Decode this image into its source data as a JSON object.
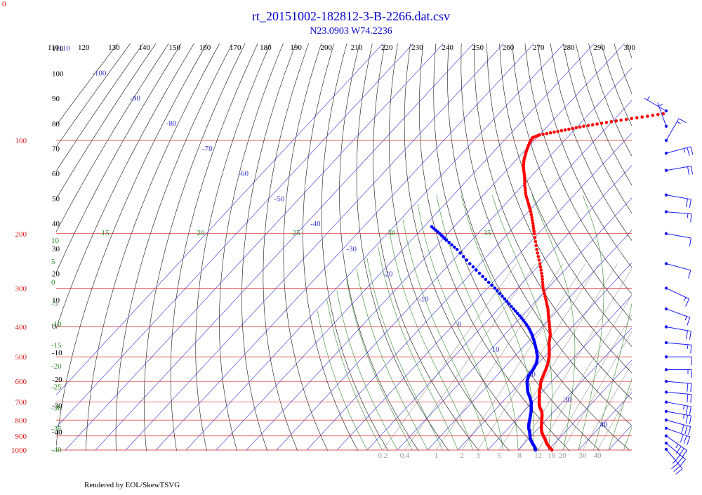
{
  "header": {
    "title": "rt_20151002-182812-3-B-2266.dat.csv",
    "subtitle": "N23.0903 W74.2236",
    "corner_label": "0"
  },
  "footer": {
    "credit": "Rendered by EOL/SkewTSVG"
  },
  "colors": {
    "isobar": "#d62020",
    "isotherm": "#3333cc",
    "dry_adiabat": "#111111",
    "moist_adiabat": "#2e8b2e",
    "mixing_ratio": "#999999",
    "temperature": "#ff0000",
    "dewpoint": "#0000ff",
    "wind_barb": "#1a1aff",
    "title": "#0000cc"
  },
  "chart_data": {
    "type": "scatter",
    "chart_kind": "skew-t log-p",
    "pressure_axis": {
      "scale": "log",
      "range": [
        1000,
        100
      ],
      "ticks": [
        100,
        200,
        300,
        400,
        500,
        600,
        700,
        800,
        900,
        1000
      ]
    },
    "top_scale_labels": [
      "110",
      "120",
      "130",
      "140",
      "150",
      "160",
      "170",
      "180",
      "190",
      "200",
      "210",
      "220",
      "230",
      "240",
      "250",
      "260",
      "270",
      "280",
      "290",
      "300"
    ],
    "isotherm_labels": [
      "-110",
      "-100",
      "-90",
      "-80",
      "-70",
      "-60",
      "-50",
      "-40",
      "-30",
      "-20",
      "-10",
      "0",
      "10",
      "20",
      "30",
      "40"
    ],
    "left_black_labels": [
      "110",
      "100",
      "90",
      "80",
      "70",
      "60",
      "50",
      "40",
      "30",
      "20",
      "10",
      "0",
      "-10",
      "-20",
      "-30",
      "-40"
    ],
    "left_green_labels": [
      "10",
      "5",
      "0",
      "-5",
      "-10",
      "-15",
      "-20",
      "-25",
      "-30",
      "-35",
      "-40"
    ],
    "moist_adiabat_labels": [
      "15",
      "20",
      "25",
      "30",
      "35"
    ],
    "mixing_ratio_labels": [
      "0.2",
      "0.4",
      "1",
      "2",
      "3",
      "5",
      "8",
      "12",
      "16",
      "20",
      "30",
      "40"
    ],
    "series": [
      {
        "role": "temperature",
        "points": [
          {
            "p": 1000,
            "t": 21.2
          },
          {
            "p": 975,
            "t": 19.2
          },
          {
            "p": 950,
            "t": 17.3
          },
          {
            "p": 925,
            "t": 15.8
          },
          {
            "p": 900,
            "t": 14.0
          },
          {
            "p": 875,
            "t": 12.3
          },
          {
            "p": 850,
            "t": 11.0
          },
          {
            "p": 825,
            "t": 9.8
          },
          {
            "p": 800,
            "t": 8.6
          },
          {
            "p": 775,
            "t": 7.4
          },
          {
            "p": 750,
            "t": 5.9
          },
          {
            "p": 725,
            "t": 3.8
          },
          {
            "p": 700,
            "t": 2.2
          },
          {
            "p": 675,
            "t": 0.8
          },
          {
            "p": 650,
            "t": -0.8
          },
          {
            "p": 625,
            "t": -2.1
          },
          {
            "p": 600,
            "t": -3.6
          },
          {
            "p": 575,
            "t": -4.6
          },
          {
            "p": 550,
            "t": -5.6
          },
          {
            "p": 525,
            "t": -6.8
          },
          {
            "p": 500,
            "t": -8.4
          },
          {
            "p": 475,
            "t": -10.5
          },
          {
            "p": 450,
            "t": -12.8
          },
          {
            "p": 425,
            "t": -14.8
          },
          {
            "p": 400,
            "t": -17.5
          },
          {
            "p": 375,
            "t": -20.5
          },
          {
            "p": 350,
            "t": -23.6
          },
          {
            "p": 325,
            "t": -27.4
          },
          {
            "p": 300,
            "t": -31.6
          },
          {
            "p": 275,
            "t": -35.5
          },
          {
            "p": 250,
            "t": -40.2
          },
          {
            "p": 225,
            "t": -45.6
          },
          {
            "p": 200,
            "t": -51.3
          },
          {
            "p": 185,
            "t": -55.0
          },
          {
            "p": 170,
            "t": -59.2
          },
          {
            "p": 160,
            "t": -62.5
          },
          {
            "p": 150,
            "t": -66.0
          },
          {
            "p": 140,
            "t": -69.2
          },
          {
            "p": 130,
            "t": -72.4
          },
          {
            "p": 122,
            "t": -75.4
          },
          {
            "p": 115,
            "t": -77.6
          },
          {
            "p": 108,
            "t": -79.4
          },
          {
            "p": 102,
            "t": -80.8
          },
          {
            "p": 98,
            "t": -81.4
          },
          {
            "p": 96,
            "t": -80.0
          },
          {
            "p": 94,
            "t": -76.0
          },
          {
            "p": 92,
            "t": -72.0
          },
          {
            "p": 90,
            "t": -68.0
          },
          {
            "p": 88,
            "t": -63.0
          },
          {
            "p": 86,
            "t": -57.5
          },
          {
            "p": 84,
            "t": -51.5
          },
          {
            "p": 82,
            "t": -45.5
          }
        ]
      },
      {
        "role": "dewpoint",
        "points": [
          {
            "p": 1000,
            "td": 15.8
          },
          {
            "p": 975,
            "td": 14.4
          },
          {
            "p": 950,
            "td": 12.6
          },
          {
            "p": 925,
            "td": 10.9
          },
          {
            "p": 900,
            "td": 9.6
          },
          {
            "p": 875,
            "td": 8.3
          },
          {
            "p": 850,
            "td": 6.8
          },
          {
            "p": 825,
            "td": 5.6
          },
          {
            "p": 800,
            "td": 4.6
          },
          {
            "p": 775,
            "td": 3.5
          },
          {
            "p": 750,
            "td": 2.4
          },
          {
            "p": 725,
            "td": 1.0
          },
          {
            "p": 700,
            "td": -0.4
          },
          {
            "p": 675,
            "td": -2.4
          },
          {
            "p": 650,
            "td": -4.6
          },
          {
            "p": 625,
            "td": -6.4
          },
          {
            "p": 600,
            "td": -8.2
          },
          {
            "p": 575,
            "td": -9.4
          },
          {
            "p": 550,
            "td": -9.8
          },
          {
            "p": 525,
            "td": -10.6
          },
          {
            "p": 500,
            "td": -12.3
          },
          {
            "p": 475,
            "td": -14.8
          },
          {
            "p": 450,
            "td": -17.6
          },
          {
            "p": 425,
            "td": -20.8
          },
          {
            "p": 400,
            "td": -24.6
          },
          {
            "p": 375,
            "td": -29.4
          },
          {
            "p": 350,
            "td": -35.0
          },
          {
            "p": 325,
            "td": -41.0
          },
          {
            "p": 300,
            "td": -47.6
          },
          {
            "p": 275,
            "td": -55.2
          },
          {
            "p": 250,
            "td": -63.4
          },
          {
            "p": 225,
            "td": -72.0
          },
          {
            "p": 210,
            "td": -78.4
          },
          {
            "p": 200,
            "td": -82.6
          },
          {
            "p": 190,
            "td": -87.4
          }
        ]
      }
    ],
    "wind_barbs": [
      {
        "p": 1000,
        "dir": 140,
        "speed": 35
      },
      {
        "p": 950,
        "dir": 130,
        "speed": 30
      },
      {
        "p": 900,
        "dir": 125,
        "speed": 35
      },
      {
        "p": 850,
        "dir": 110,
        "speed": 30
      },
      {
        "p": 800,
        "dir": 105,
        "speed": 30
      },
      {
        "p": 750,
        "dir": 100,
        "speed": 25
      },
      {
        "p": 700,
        "dir": 100,
        "speed": 25
      },
      {
        "p": 650,
        "dir": 95,
        "speed": 20
      },
      {
        "p": 600,
        "dir": 95,
        "speed": 20
      },
      {
        "p": 550,
        "dir": 90,
        "speed": 15
      },
      {
        "p": 500,
        "dir": 90,
        "speed": 10
      },
      {
        "p": 450,
        "dir": 95,
        "speed": 15
      },
      {
        "p": 400,
        "dir": 100,
        "speed": 20
      },
      {
        "p": 350,
        "dir": 110,
        "speed": 15
      },
      {
        "p": 300,
        "dir": 115,
        "speed": 15
      },
      {
        "p": 250,
        "dir": 105,
        "speed": 10
      },
      {
        "p": 200,
        "dir": 100,
        "speed": 10
      },
      {
        "p": 170,
        "dir": 95,
        "speed": 15
      },
      {
        "p": 150,
        "dir": 100,
        "speed": 20
      },
      {
        "p": 125,
        "dir": 80,
        "speed": 20
      },
      {
        "p": 110,
        "dir": 75,
        "speed": 25
      },
      {
        "p": 100,
        "dir": 30,
        "speed": 15
      },
      {
        "p": 90,
        "dir": 340,
        "speed": 5
      },
      {
        "p": 80,
        "dir": 300,
        "speed": 5
      }
    ]
  }
}
